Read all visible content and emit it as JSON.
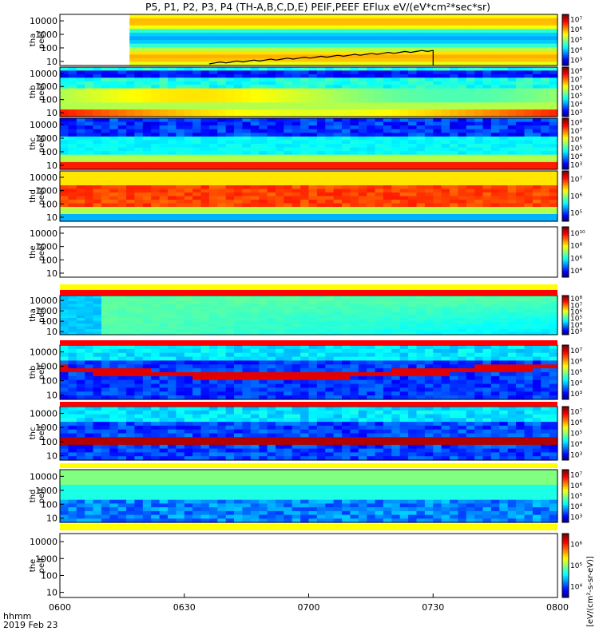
{
  "chart_data": {
    "type": "heatmap",
    "title": "P5, P1, P2, P3, P4 (TH-A,B,C,D,E) PEIF,PEEF EFlux eV/(eV*cm²*sec*sr)",
    "time_axis": {
      "label_top": "hhmm",
      "label_bottom": "2019 Feb 23",
      "ticks": [
        "0600",
        "0630",
        "0700",
        "0730",
        "0800"
      ],
      "range": [
        "06:00",
        "08:00"
      ]
    },
    "energy_axis": {
      "scale": "log",
      "ticks": [
        "10",
        "100",
        "1000",
        "10000"
      ],
      "range": [
        5,
        30000
      ]
    },
    "colorbar_label": "[eV/(cm²-s-sr-eV)]",
    "panels": [
      {
        "probe": "tha",
        "species": "peef",
        "ylabel": [
          "tha",
          "peef"
        ],
        "color_ticks": [
          "10³",
          "10⁴",
          "10⁵",
          "10⁶",
          "10⁷"
        ],
        "data_start_fraction": 0.14,
        "overlay_line": true,
        "mode_bar": false
      },
      {
        "probe": "thb",
        "species": "peef",
        "ylabel": [
          "thb",
          "peef"
        ],
        "color_ticks": [
          "10³",
          "10⁴",
          "10⁵",
          "10⁶",
          "10⁷",
          "10⁸"
        ],
        "mode_bar": false
      },
      {
        "probe": "thc",
        "species": "peef",
        "ylabel": [
          "thc",
          "peef"
        ],
        "color_ticks": [
          "10³",
          "10⁴",
          "10⁵",
          "10⁶",
          "10⁷",
          "10⁸"
        ],
        "mode_bar": false
      },
      {
        "probe": "thd",
        "species": "peef",
        "ylabel": [
          "thd",
          "peef"
        ],
        "color_ticks": [
          "10⁵",
          "10⁶",
          "10⁷"
        ],
        "mode_bar": false
      },
      {
        "probe": "the",
        "species": "peef",
        "ylabel": [
          "the",
          "peef"
        ],
        "color_ticks": [
          "10⁴",
          "10⁶",
          "10⁸",
          "10¹⁰"
        ],
        "empty": true,
        "mode_bar": true
      },
      {
        "probe": "tha",
        "species": "peif",
        "ylabel": [
          "tha",
          "peif"
        ],
        "color_ticks": [
          "10³",
          "10⁴",
          "10⁵",
          "10⁶",
          "10⁷",
          "10⁸"
        ],
        "mode_bar": true
      },
      {
        "probe": "thb",
        "species": "peif",
        "ylabel": [
          "thb",
          "peif"
        ],
        "color_ticks": [
          "10³",
          "10⁴",
          "10⁵",
          "10⁶",
          "10⁷"
        ],
        "mode_bar": true
      },
      {
        "probe": "thc",
        "species": "peif",
        "ylabel": [
          "thc",
          "peif"
        ],
        "color_ticks": [
          "10³",
          "10⁴",
          "10⁵",
          "10⁶",
          "10⁷"
        ],
        "mode_bar": true
      },
      {
        "probe": "thd",
        "species": "peif",
        "ylabel": [
          "thd",
          "peif"
        ],
        "color_ticks": [
          "10³",
          "10⁴",
          "10⁵",
          "10⁶",
          "10⁷"
        ],
        "mode_bar": true
      },
      {
        "probe": "the",
        "species": "peif",
        "ylabel": [
          "the",
          "peif"
        ],
        "color_ticks": [
          "10⁴",
          "10⁵",
          "10⁶"
        ],
        "empty": true,
        "mode_bar": false
      }
    ]
  }
}
